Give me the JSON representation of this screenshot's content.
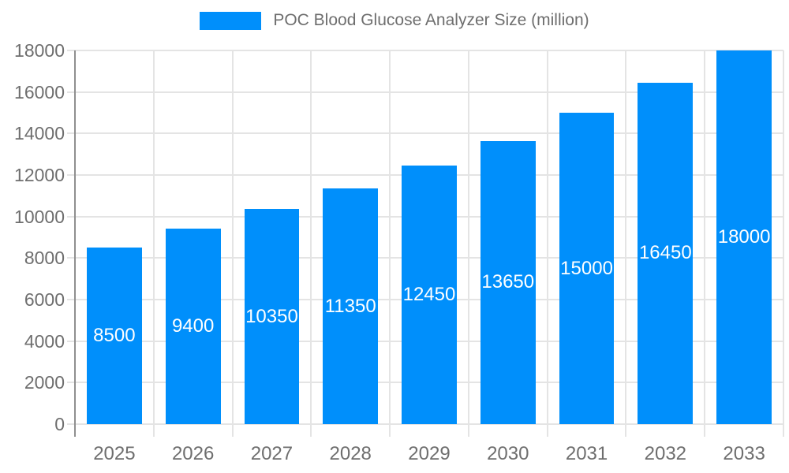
{
  "chart_data": {
    "type": "bar",
    "series_name": "POC Blood Glucose Analyzer Size (million)",
    "categories": [
      "2025",
      "2026",
      "2027",
      "2028",
      "2029",
      "2030",
      "2031",
      "2032",
      "2033"
    ],
    "values": [
      8500,
      9400,
      10350,
      11350,
      12450,
      13650,
      15000,
      16450,
      18000
    ],
    "data_labels": [
      "8500",
      "9400",
      "10350",
      "11350",
      "12450",
      "13650",
      "15000",
      "16450",
      "18000"
    ],
    "xlabel": "",
    "ylabel": "",
    "ylim": [
      0,
      18000
    ],
    "ytick_step": 2000,
    "ytick_labels": [
      "0",
      "2000",
      "4000",
      "6000",
      "8000",
      "10000",
      "12000",
      "14000",
      "16000",
      "18000"
    ],
    "grid": "horizontal and vertical gridlines on",
    "legend_position": "top-center",
    "colors": {
      "bar": "#008ffb",
      "bar_label_text": "#ffffff",
      "axis_text": "#6e6e6e",
      "gridline": "#e4e4e4",
      "axis_line": "#8f8f8f"
    }
  }
}
